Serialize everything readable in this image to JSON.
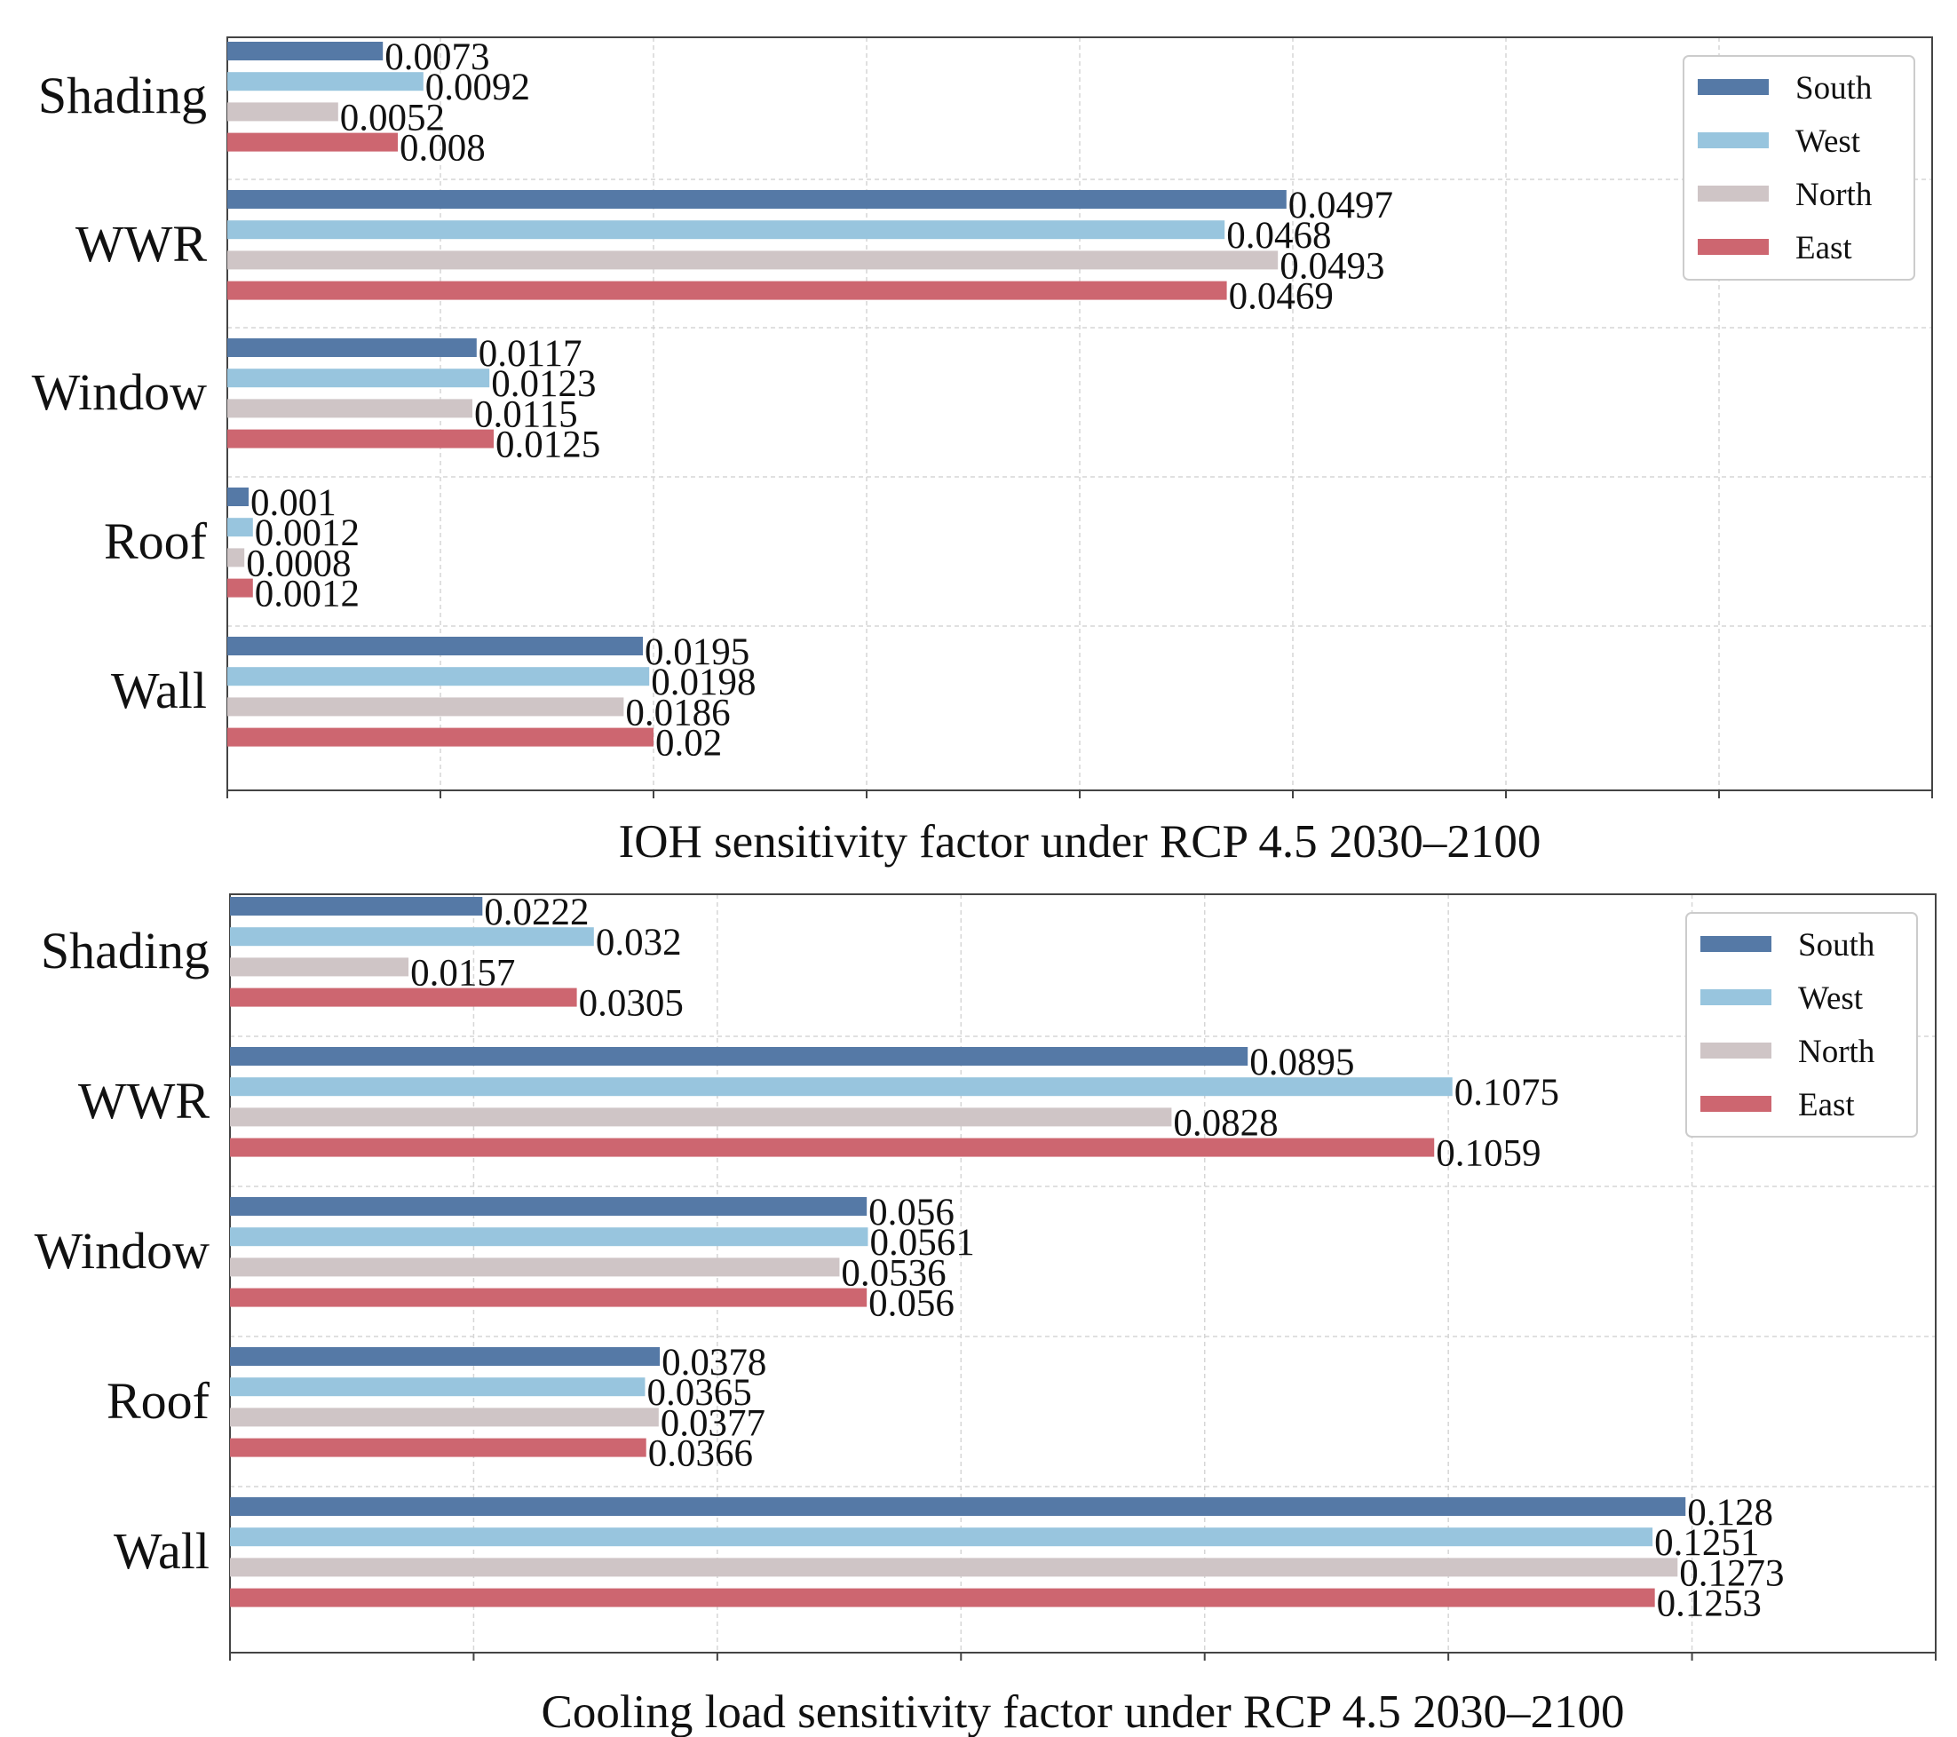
{
  "series_colors": {
    "South": "#5579a6",
    "West": "#98c5de",
    "North": "#cfc5c6",
    "East": "#cd6670"
  },
  "chart_data": [
    {
      "type": "bar",
      "orientation": "horizontal",
      "title": "IOH sensitivity factor under RCP 4.5  2030–2100",
      "categories": [
        "Shading",
        "WWR",
        "Window",
        "Roof",
        "Wall"
      ],
      "series": [
        {
          "name": "South",
          "values": [
            0.0073,
            0.0497,
            0.0117,
            0.001,
            0.0195
          ]
        },
        {
          "name": "West",
          "values": [
            0.0092,
            0.0468,
            0.0123,
            0.0012,
            0.0198
          ]
        },
        {
          "name": "North",
          "values": [
            0.0052,
            0.0493,
            0.0115,
            0.0008,
            0.0186
          ]
        },
        {
          "name": "East",
          "values": [
            0.008,
            0.0469,
            0.0125,
            0.0012,
            0.02
          ]
        }
      ],
      "xlim": [
        0,
        0.08
      ],
      "grid": true,
      "legend": "top-right",
      "xlabel": "",
      "ylabel": ""
    },
    {
      "type": "bar",
      "orientation": "horizontal",
      "title": "Cooling load sensitivity factor under RCP 4.5  2030–2100",
      "categories": [
        "Shading",
        "WWR",
        "Window",
        "Roof",
        "Wall"
      ],
      "series": [
        {
          "name": "South",
          "values": [
            0.0222,
            0.0895,
            0.056,
            0.0378,
            0.128
          ]
        },
        {
          "name": "West",
          "values": [
            0.032,
            0.1075,
            0.0561,
            0.0365,
            0.1251
          ]
        },
        {
          "name": "North",
          "values": [
            0.0157,
            0.0828,
            0.0536,
            0.0377,
            0.1273
          ]
        },
        {
          "name": "East",
          "values": [
            0.0305,
            0.1059,
            0.056,
            0.0366,
            0.1253
          ]
        }
      ],
      "xlim": [
        0,
        0.15
      ],
      "grid": true,
      "legend": "top-right",
      "xlabel": "",
      "ylabel": ""
    }
  ]
}
